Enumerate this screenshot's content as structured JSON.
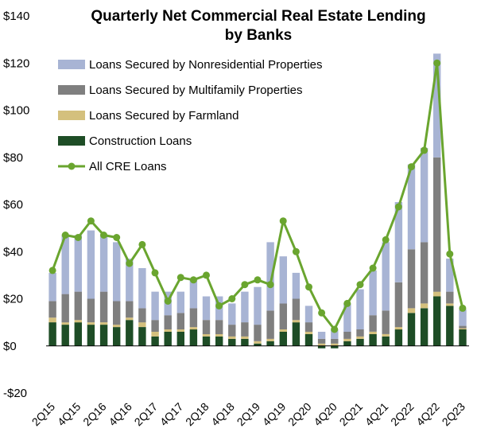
{
  "chart_data": {
    "type": "bar",
    "title_lines": [
      "Quarterly Net Commercial Real Estate Lending",
      "by Banks"
    ],
    "ylim": [
      -20,
      140
    ],
    "y_ticks": [
      -20,
      0,
      20,
      40,
      60,
      80,
      100,
      120,
      140
    ],
    "y_tick_labels": [
      "-$20",
      "$0",
      "$20",
      "$40",
      "$60",
      "$80",
      "$100",
      "$120",
      "$140"
    ],
    "categories": [
      "2Q15",
      "3Q15",
      "4Q15",
      "1Q16",
      "2Q16",
      "3Q16",
      "4Q16",
      "1Q17",
      "2Q17",
      "3Q17",
      "4Q17",
      "1Q18",
      "2Q18",
      "3Q18",
      "4Q18",
      "1Q19",
      "2Q19",
      "3Q19",
      "4Q19",
      "1Q20",
      "2Q20",
      "3Q20",
      "4Q20",
      "1Q21",
      "2Q21",
      "3Q21",
      "4Q21",
      "1Q22",
      "2Q22",
      "3Q22",
      "4Q22",
      "1Q23",
      "2Q23"
    ],
    "x_tick_labels": [
      "2Q15",
      "4Q15",
      "2Q16",
      "4Q16",
      "2Q17",
      "4Q17",
      "2Q18",
      "4Q18",
      "2Q19",
      "4Q19",
      "2Q20",
      "4Q20",
      "2Q21",
      "4Q21",
      "2Q22",
      "4Q22",
      "2Q23"
    ],
    "grid": false,
    "legend_position": "top-left",
    "stacked": true,
    "series": [
      {
        "name": "Loans Secured by Nonresidential Properties",
        "kind": "bar",
        "color": "#a8b4d4",
        "values": [
          12,
          25,
          24,
          29,
          24,
          25,
          18,
          17,
          12,
          10,
          9,
          12,
          10,
          10,
          9,
          13,
          16,
          29,
          20,
          11,
          7,
          3,
          4,
          12,
          17,
          19,
          29,
          34,
          36,
          40,
          44,
          14,
          7
        ]
      },
      {
        "name": "Loans Secured by Multifamily Properties",
        "kind": "bar",
        "color": "#7f7f7f",
        "values": [
          7,
          12,
          12,
          10,
          13,
          10,
          7,
          6,
          5,
          6,
          7,
          8,
          6,
          6,
          5,
          6,
          7,
          12,
          11,
          9,
          4,
          2,
          2,
          3,
          3,
          7,
          10,
          19,
          25,
          26,
          57,
          5,
          1
        ]
      },
      {
        "name": "Loans Secured by Farmland",
        "kind": "bar",
        "color": "#d4c07d",
        "values": [
          2,
          1,
          1,
          1,
          1,
          1,
          1,
          2,
          2,
          1,
          1,
          1,
          1,
          1,
          1,
          1,
          1,
          1,
          1,
          1,
          1,
          1,
          1,
          1,
          1,
          1,
          1,
          1,
          2,
          2,
          2,
          1,
          0.5
        ]
      },
      {
        "name": "Construction Loans",
        "kind": "bar",
        "color": "#1e4d26",
        "values": [
          10,
          9,
          10,
          9,
          9,
          8,
          11,
          8,
          4,
          6,
          6,
          7,
          4,
          4,
          3,
          3,
          1,
          2,
          6,
          10,
          5,
          -1,
          -1,
          2,
          3,
          5,
          4,
          7,
          14,
          16,
          21,
          17,
          7
        ]
      },
      {
        "name": "All CRE Loans",
        "kind": "line",
        "color": "#6aa52f",
        "values": [
          32,
          47,
          46,
          53,
          47,
          46,
          35,
          43,
          31,
          19,
          29,
          28,
          30,
          17,
          20,
          26,
          28,
          26,
          53,
          40,
          25,
          14,
          7,
          18,
          26,
          33,
          45,
          59,
          76,
          83,
          120,
          39,
          16
        ]
      }
    ]
  }
}
